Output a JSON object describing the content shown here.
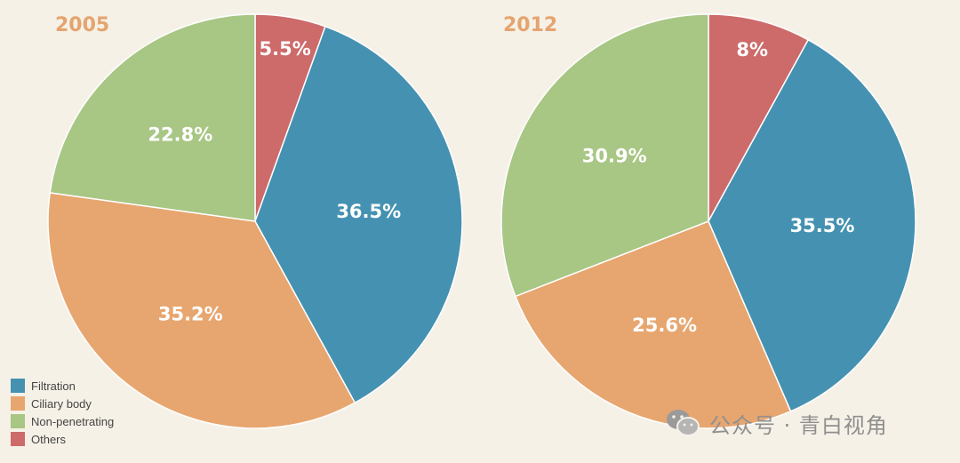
{
  "chart_data": [
    {
      "type": "pie",
      "title": "2005",
      "categories": [
        "Filtration",
        "Ciliary body",
        "Non-penetrating",
        "Others"
      ],
      "values": [
        36.5,
        35.2,
        22.8,
        5.5
      ],
      "labels": [
        "36.5%",
        "35.2%",
        "22.8%",
        "5.5%"
      ]
    },
    {
      "type": "pie",
      "title": "2012",
      "categories": [
        "Filtration",
        "Ciliary body",
        "Non-penetrating",
        "Others"
      ],
      "values": [
        35.5,
        25.6,
        30.9,
        8
      ],
      "labels": [
        "35.5%",
        "25.6%",
        "30.9%",
        "8%"
      ]
    }
  ],
  "legend": {
    "items": [
      {
        "label": "Filtration",
        "color": "#4591b1"
      },
      {
        "label": "Ciliary body",
        "color": "#e7a66f"
      },
      {
        "label": "Non-penetrating",
        "color": "#a8c684"
      },
      {
        "label": "Others",
        "color": "#cd6a6a"
      }
    ],
    "placement": "bottom-left"
  },
  "colors": {
    "Filtration": "#4591b1",
    "Ciliary body": "#e7a66f",
    "Non-penetrating": "#a8c684",
    "Others": "#cd6a6a",
    "title": "#e5a46f",
    "background": "#f6f1e7"
  },
  "watermark": {
    "text": "公众号 · 青白视角",
    "icon": "wechat-icon"
  }
}
